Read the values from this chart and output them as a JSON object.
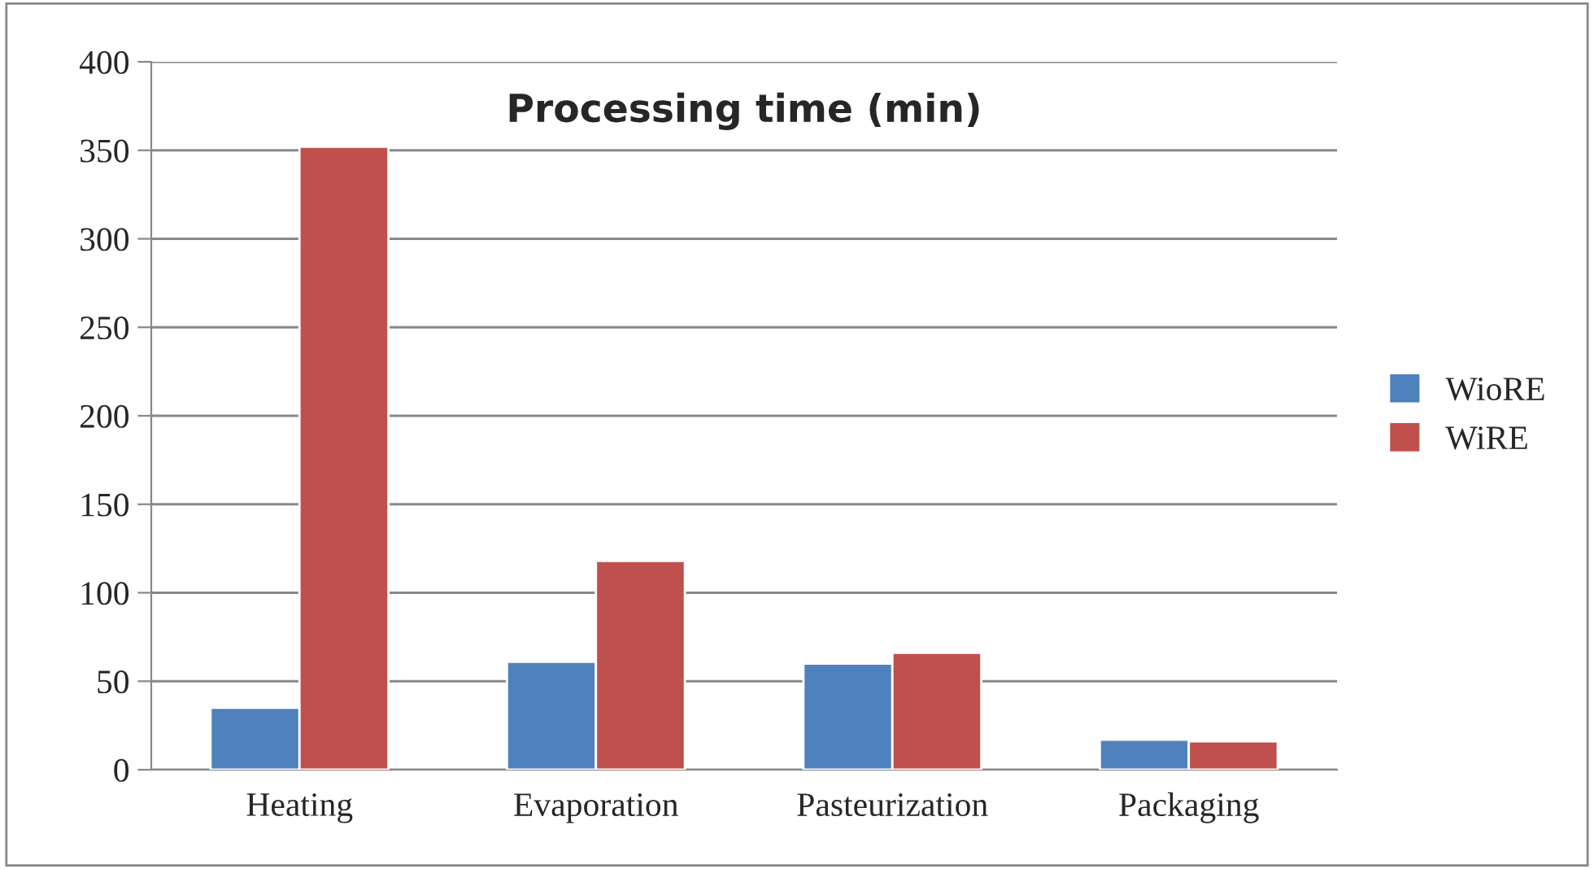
{
  "chart_data": {
    "type": "bar",
    "title": "Processing time (min)",
    "categories": [
      "Heating",
      "Evaporation",
      "Pasteurization",
      "Packaging"
    ],
    "series": [
      {
        "name": "WioRE",
        "color": "#4f81bd",
        "values": [
          35,
          61,
          60,
          17
        ]
      },
      {
        "name": "WiRE",
        "color": "#c0504d",
        "values": [
          352,
          118,
          66,
          16
        ]
      }
    ],
    "ylim": [
      0,
      400
    ],
    "yticks": [
      0,
      50,
      100,
      150,
      200,
      250,
      300,
      350,
      400
    ],
    "grid": "y",
    "legend": "right"
  }
}
